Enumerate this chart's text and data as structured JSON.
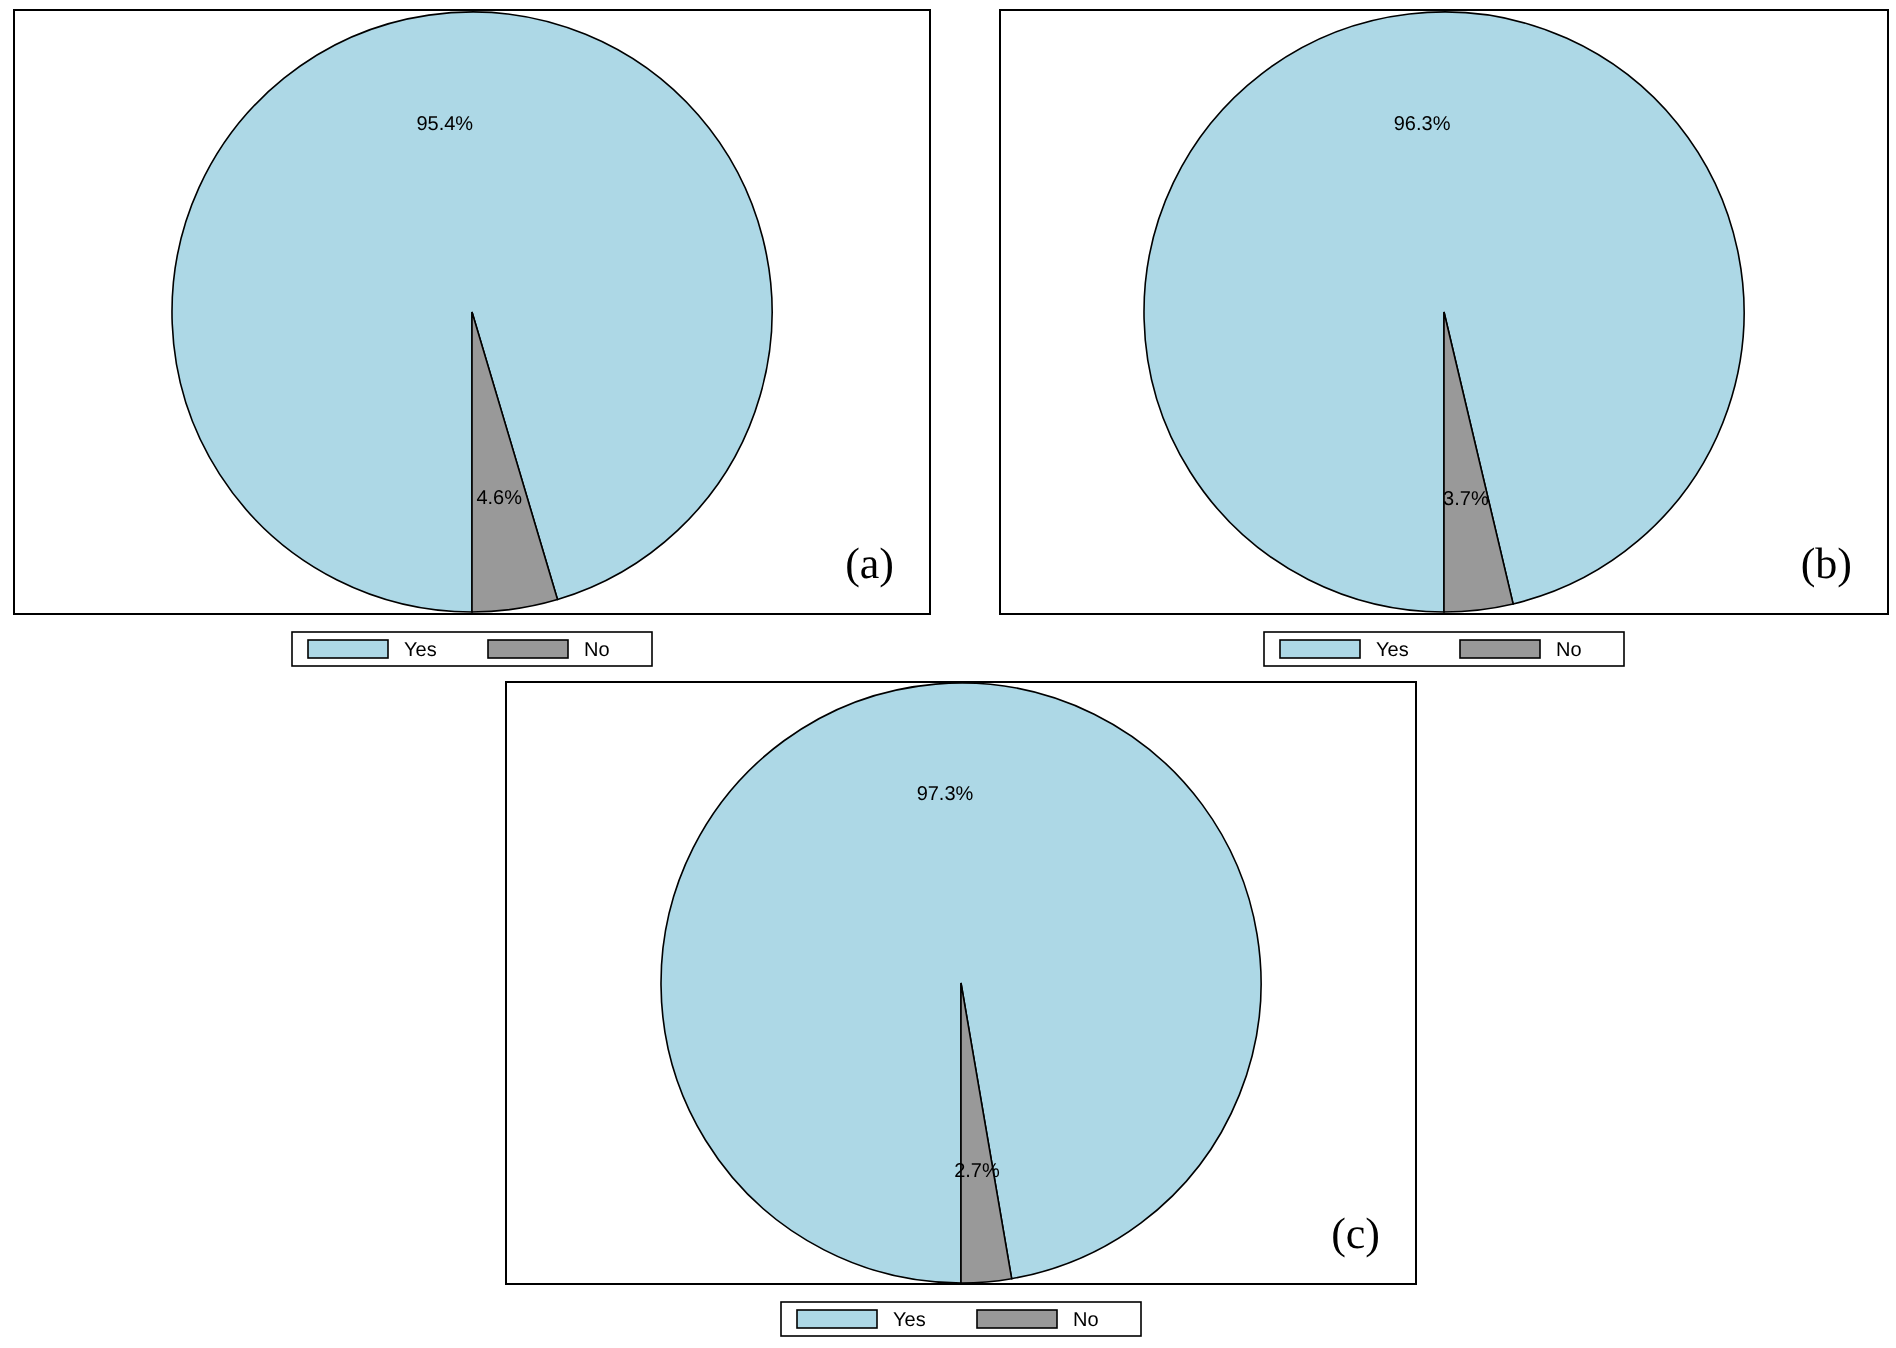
{
  "chart_data": [
    {
      "type": "pie",
      "categories": [
        "Yes",
        "No"
      ],
      "values": [
        95.4,
        4.6
      ],
      "colors": [
        "#add8e6",
        "#999999"
      ],
      "value_labels": [
        "95.4%",
        "4.6%"
      ],
      "legend": "bottom",
      "annotations": [
        "(a)"
      ]
    },
    {
      "type": "pie",
      "categories": [
        "Yes",
        "No"
      ],
      "values": [
        96.3,
        3.7
      ],
      "colors": [
        "#add8e6",
        "#999999"
      ],
      "value_labels": [
        "96.3%",
        "3.7%"
      ],
      "legend": "bottom",
      "annotations": [
        "(b)"
      ]
    },
    {
      "type": "pie",
      "categories": [
        "Yes",
        "No"
      ],
      "values": [
        97.3,
        2.7
      ],
      "colors": [
        "#add8e6",
        "#999999"
      ],
      "value_labels": [
        "97.3%",
        "2.7%"
      ],
      "legend": "bottom",
      "annotations": [
        "(c)"
      ]
    }
  ]
}
